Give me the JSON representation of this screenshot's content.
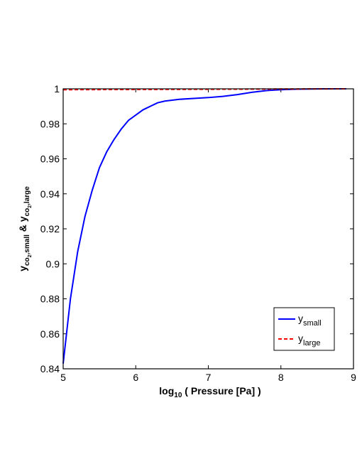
{
  "chart_data": {
    "type": "line",
    "title": "",
    "xlabel": {
      "main": "log",
      "sub": "10",
      "suffix": " ( Pressure [Pa] )"
    },
    "ylabel": {
      "p1": "y",
      "s1": "co",
      "ss1": "2",
      "s1b": ",small",
      "amp": " & ",
      "p2": "y",
      "s2": "co",
      "ss2": "2",
      "s2b": ",large"
    },
    "xlim": [
      5,
      9
    ],
    "ylim": [
      0.84,
      1.0
    ],
    "xticks": [
      "5",
      "6",
      "7",
      "8",
      "9"
    ],
    "yticks": [
      "0.84",
      "0.86",
      "0.88",
      "0.9",
      "0.92",
      "0.94",
      "0.96",
      "0.98",
      "1"
    ],
    "grid": false,
    "legend_position": "bottom-right",
    "series": [
      {
        "name": "y",
        "name_sub": "small",
        "color": "#0000ff",
        "style": "solid",
        "x": [
          5.0,
          5.1,
          5.2,
          5.3,
          5.4,
          5.5,
          5.6,
          5.7,
          5.8,
          5.9,
          6.0,
          6.1,
          6.2,
          6.3,
          6.4,
          6.5,
          6.6,
          6.8,
          7.0,
          7.2,
          7.4,
          7.6,
          7.8,
          8.0,
          8.2,
          8.4,
          8.6,
          8.9
        ],
        "y": [
          0.843,
          0.88,
          0.907,
          0.927,
          0.942,
          0.955,
          0.964,
          0.971,
          0.977,
          0.982,
          0.985,
          0.988,
          0.99,
          0.992,
          0.993,
          0.9935,
          0.994,
          0.9945,
          0.995,
          0.9957,
          0.9967,
          0.998,
          0.999,
          0.9995,
          0.9998,
          0.9999,
          1.0,
          1.0
        ]
      },
      {
        "name": "y",
        "name_sub": "large",
        "color": "#ff0000",
        "style": "dashed",
        "x": [
          5.0,
          8.9
        ],
        "y": [
          0.9995,
          1.0
        ]
      }
    ]
  }
}
